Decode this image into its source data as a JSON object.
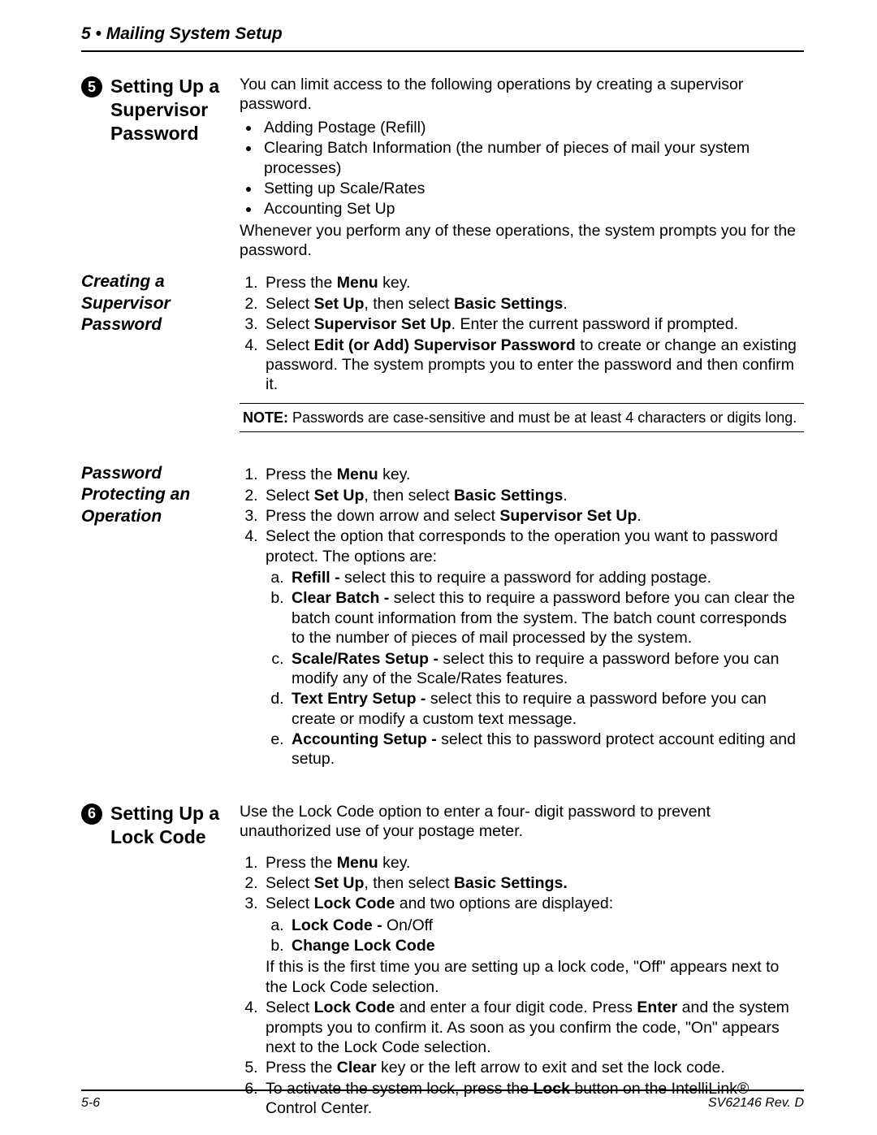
{
  "header": "5 • Mailing System Setup",
  "footer_left": "5-6",
  "footer_right": "SV62146 Rev. D",
  "sec5": {
    "num": "5",
    "title_l1": "Setting Up a",
    "title_l2": "Supervisor",
    "title_l3": "Password",
    "intro": "You can limit access to the following operations by creating a supervisor password.",
    "b1": "Adding Postage (Refill)",
    "b2": "Clearing Batch Information (the number of pieces of mail your system processes)",
    "b3": "Setting up Scale/Rates",
    "b4": "Accounting Set Up",
    "outro": "Whenever you perform any of these operations, the system prompts you for the password."
  },
  "creating": {
    "title_l1": "Creating a",
    "title_l2": "Supervisor",
    "title_l3": "Password",
    "s1a": "Press the ",
    "s1b": "Menu",
    "s1c": " key.",
    "s2a": "Select ",
    "s2b": "Set Up",
    "s2c": ", then select ",
    "s2d": "Basic Settings",
    "s2e": ".",
    "s3a": "Select ",
    "s3b": "Supervisor Set Up",
    "s3c": ". Enter the current password if prompted.",
    "s4a": "Select ",
    "s4b": "Edit (or Add) Supervisor Password",
    "s4c": " to create or change an existing password. The system prompts you to enter the password and then confirm it.",
    "note_label": "NOTE:",
    "note_text": "  Passwords are case-sensitive and must be at least 4 characters or digits long."
  },
  "protecting": {
    "title_l1": "Password",
    "title_l2": "Protecting an",
    "title_l3": "Operation",
    "s1a": "Press the ",
    "s1b": "Menu",
    "s1c": " key.",
    "s2a": "Select ",
    "s2b": "Set Up",
    "s2c": ", then select ",
    "s2d": "Basic Settings",
    "s2e": ".",
    "s3a": "Press the down arrow and select ",
    "s3b": "Supervisor Set Up",
    "s3c": ".",
    "s4": "Select the option that corresponds to the operation you want to password protect. The options are:",
    "a_b": "Refill - ",
    "a_t": "select this to require a password for adding postage.",
    "b_b": "Clear Batch - ",
    "b_t": "select this to require a password before you can clear the batch count information from the system. The batch count corresponds to the number of pieces of mail processed by the system.",
    "c_b": "Scale/Rates Setup - ",
    "c_t": "select this to require a password before you can modify any of the Scale/Rates features.",
    "d_b": "Text Entry Setup - ",
    "d_t": "select this to require a password before you can create or modify a custom text message.",
    "e_b": "Accounting Setup - ",
    "e_t": "select this to password protect account editing and setup."
  },
  "sec6": {
    "num": "6",
    "title_l1": "Setting Up a",
    "title_l2": "Lock Code",
    "intro": "Use the Lock Code option to enter a four- digit password to prevent unauthorized use of your postage meter.",
    "s1a": "Press the ",
    "s1b": "Menu",
    "s1c": " key.",
    "s2a": "Select ",
    "s2b": "Set Up",
    "s2c": ", then select ",
    "s2d": "Basic Settings.",
    "s3a": "Select ",
    "s3b": "Lock Code",
    "s3c": " and two options are displayed:",
    "a_b": "Lock Code - ",
    "a_t": "On/Off",
    "b_b": "Change Lock Code",
    "s3_after": "If this is the first time you are setting up a lock code, \"Off\" appears next to the Lock Code selection.",
    "s4a": "Select ",
    "s4b": "Lock Code",
    "s4c": " and enter a four digit code. Press ",
    "s4d": "Enter",
    "s4e": " and the system prompts you to confirm it. As soon as you confirm the code, \"On\" appears next to the Lock Code selection.",
    "s5a": "Press the ",
    "s5b": "Clear",
    "s5c": " key or the left arrow to exit and set the lock code.",
    "s6a": "To activate the system lock, press the ",
    "s6b": "Lock",
    "s6c": " button on the IntelliLink® Control Center."
  }
}
